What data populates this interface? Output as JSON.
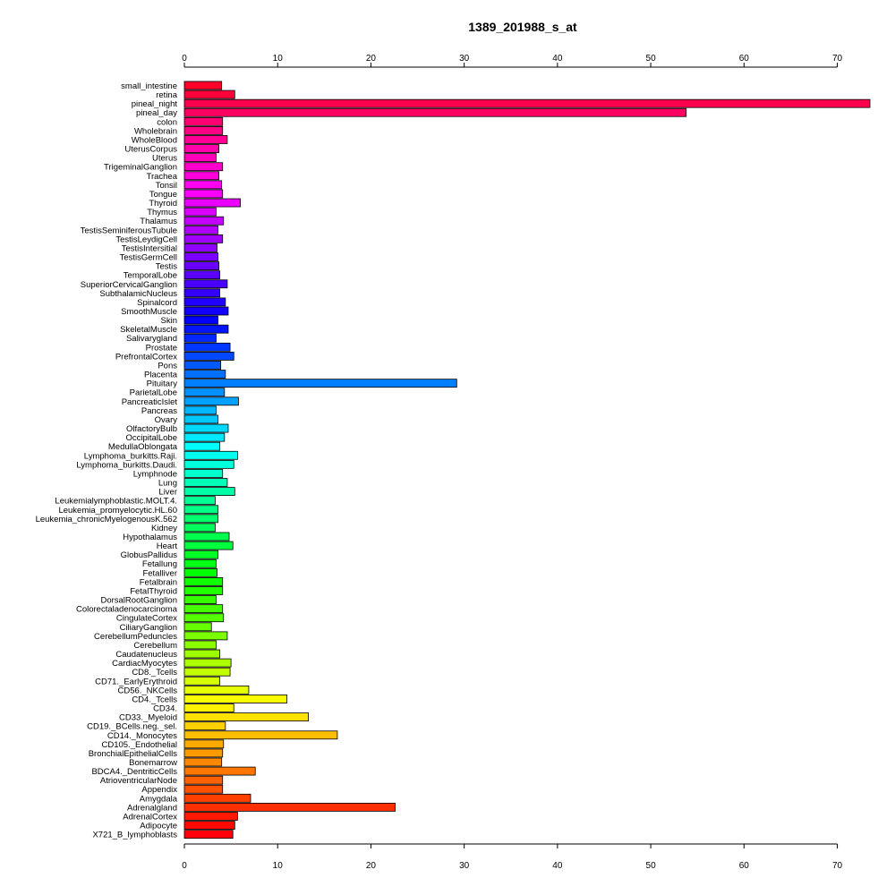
{
  "chart_data": {
    "type": "bar",
    "orientation": "horizontal",
    "title": "1389_201988_s_at",
    "xlim": [
      0,
      73.5
    ],
    "xticks": [
      0,
      10,
      20,
      30,
      40,
      50,
      60,
      70
    ],
    "axes": [
      "top",
      "bottom"
    ],
    "grid": false,
    "bar_colors": "rainbow (red → magenta → blue → cyan → green → yellow → orange → red) by category order",
    "categories": [
      "small_intestine",
      "retina",
      "pineal_night",
      "pineal_day",
      "colon",
      "Wholebrain",
      "WholeBlood",
      "UterusCorpus",
      "Uterus",
      "TrigeminalGanglion",
      "Trachea",
      "Tonsil",
      "Tongue",
      "Thyroid",
      "Thymus",
      "Thalamus",
      "TestisSeminiferousTubule",
      "TestisLeydigCell",
      "TestisIntersitial",
      "TestisGermCell",
      "Testis",
      "TemporalLobe",
      "SuperiorCervicalGanglion",
      "SubthalamicNucleus",
      "Spinalcord",
      "SmoothMuscle",
      "Skin",
      "SkeletalMuscle",
      "Salivarygland",
      "Prostate",
      "PrefrontalCortex",
      "Pons",
      "Placenta",
      "Pituitary",
      "ParietalLobe",
      "PancreaticIslet",
      "Pancreas",
      "Ovary",
      "OlfactoryBulb",
      "OccipitalLobe",
      "MedullaOblongata",
      "Lymphoma_burkitts.Raji.",
      "Lymphoma_burkitts.Daudi.",
      "Lymphnode",
      "Lung",
      "Liver",
      "Leukemialymphoblastic.MOLT.4.",
      "Leukemia_promyelocytic.HL.60",
      "Leukemia_chronicMyelogenousK.562",
      "Kidney",
      "Hypothalamus",
      "Heart",
      "GlobusPallidus",
      "Fetallung",
      "Fetalliver",
      "Fetalbrain",
      "FetalThyroid",
      "DorsalRootGanglion",
      "Colorectaladenocarcinoma",
      "CingulateCortex",
      "CiliaryGanglion",
      "CerebellumPeduncles",
      "Cerebellum",
      "Caudatenucleus",
      "CardiacMyocytes",
      "CD8._Tcells",
      "CD71._EarlyErythroid",
      "CD56._NKCells",
      "CD4._Tcells",
      "CD34.",
      "CD33._Myeloid",
      "CD19._BCells.neg._sel.",
      "CD14._Monocytes",
      "CD105._Endothelial",
      "BronchialEpithelialCells",
      "Bonemarrow",
      "BDCA4._DentriticCells",
      "AtrioventricularNode",
      "Appendix",
      "Amygdala",
      "Adrenalgland",
      "AdrenalCortex",
      "Adipocyte",
      "X721_B_lymphoblasts"
    ],
    "values": [
      4.0,
      5.4,
      73.5,
      53.8,
      4.1,
      4.1,
      4.6,
      3.7,
      3.4,
      4.1,
      3.7,
      4.0,
      4.1,
      6.0,
      3.4,
      4.2,
      3.6,
      4.1,
      3.5,
      3.6,
      3.7,
      3.8,
      4.6,
      3.8,
      4.4,
      4.7,
      3.6,
      4.7,
      3.4,
      4.9,
      5.3,
      3.9,
      4.4,
      29.2,
      4.3,
      5.8,
      3.4,
      3.6,
      4.7,
      4.3,
      3.8,
      5.7,
      5.3,
      4.1,
      4.6,
      5.4,
      3.3,
      3.6,
      3.6,
      3.3,
      4.8,
      5.2,
      3.6,
      3.4,
      3.5,
      4.1,
      4.1,
      3.4,
      4.1,
      4.2,
      2.9,
      4.6,
      3.4,
      3.8,
      5.0,
      4.9,
      3.8,
      6.9,
      11.0,
      5.3,
      13.3,
      4.4,
      16.4,
      4.2,
      4.1,
      4.0,
      7.6,
      4.1,
      4.1,
      7.1,
      22.6,
      5.7,
      5.4,
      5.2
    ]
  }
}
